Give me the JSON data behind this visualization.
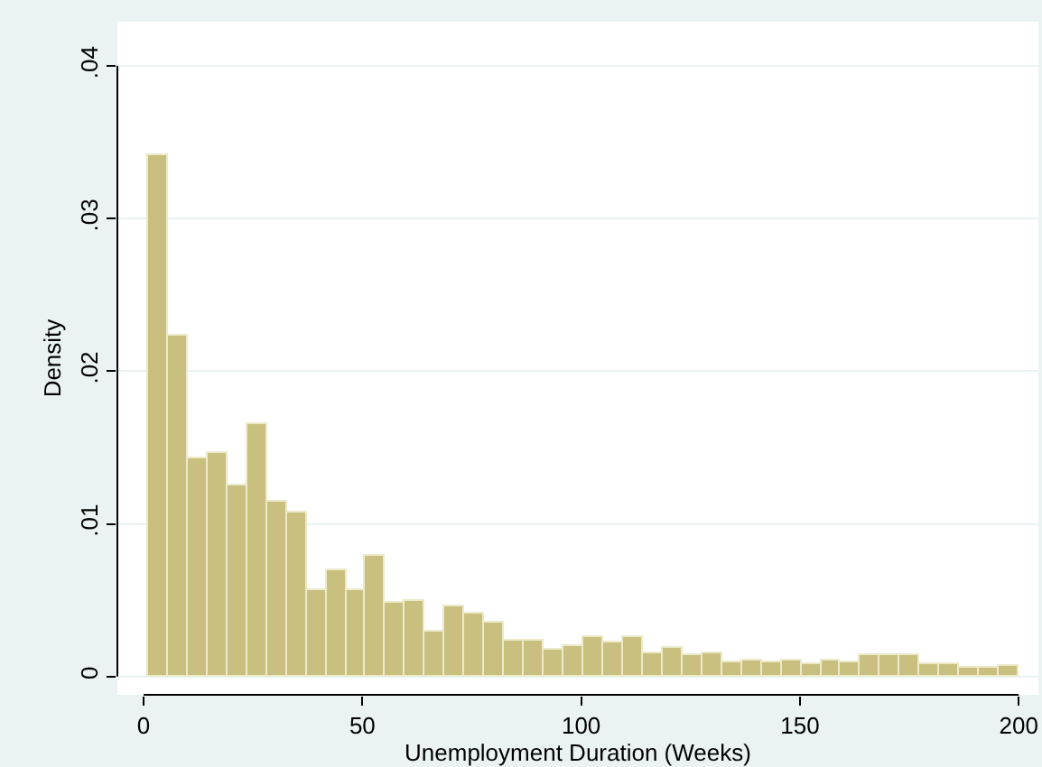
{
  "chart_data": {
    "type": "histogram",
    "xlabel": "Unemployment Duration (Weeks)",
    "ylabel": "Density",
    "color": "#c9c07f",
    "bins": [
      1,
      5.52,
      10.05,
      14.57,
      19.09,
      23.61,
      28.14,
      32.66,
      37.18,
      41.7,
      46.23,
      50.75,
      55.27,
      59.8,
      64.32,
      68.84,
      73.36,
      77.89,
      82.41,
      86.93,
      91.45,
      95.98,
      100.5,
      105.02,
      109.55,
      114.07,
      118.59,
      123.11,
      127.64,
      132.16,
      136.68,
      141.2,
      145.73,
      150.25,
      154.77,
      159.3,
      163.82,
      168.34,
      172.86,
      177.39,
      181.91,
      186.43,
      190.95,
      195.48,
      200
    ],
    "values": [
      0.0342,
      0.0223,
      0.0143,
      0.0147,
      0.0125,
      0.0165,
      0.0114,
      0.0107,
      0.0056,
      0.007,
      0.0056,
      0.0079,
      0.0048,
      0.0049,
      0.0029,
      0.0046,
      0.0041,
      0.0035,
      0.0023,
      0.0024,
      0.0017,
      0.002,
      0.0026,
      0.0022,
      0.0026,
      0.0015,
      0.0019,
      0.0014,
      0.0015,
      0.0009,
      0.0011,
      0.0009,
      0.0011,
      0.0008,
      0.0011,
      0.0009,
      0.0014,
      0.0014,
      0.0014,
      0.0008,
      0.0008,
      0.0006,
      0.0006,
      0.0007
    ],
    "xlim": [
      -6,
      204.5
    ],
    "ylim": [
      -0.0012,
      0.0429
    ],
    "xticks": [
      0,
      50,
      100,
      150,
      200
    ],
    "yticks": [
      {
        "value": 0,
        "label": "0"
      },
      {
        "value": 0.01,
        "label": ".01"
      },
      {
        "value": 0.02,
        "label": ".02"
      },
      {
        "value": 0.03,
        "label": ".03"
      },
      {
        "value": 0.04,
        "label": ".04"
      }
    ],
    "grid": "y",
    "legend": false
  }
}
